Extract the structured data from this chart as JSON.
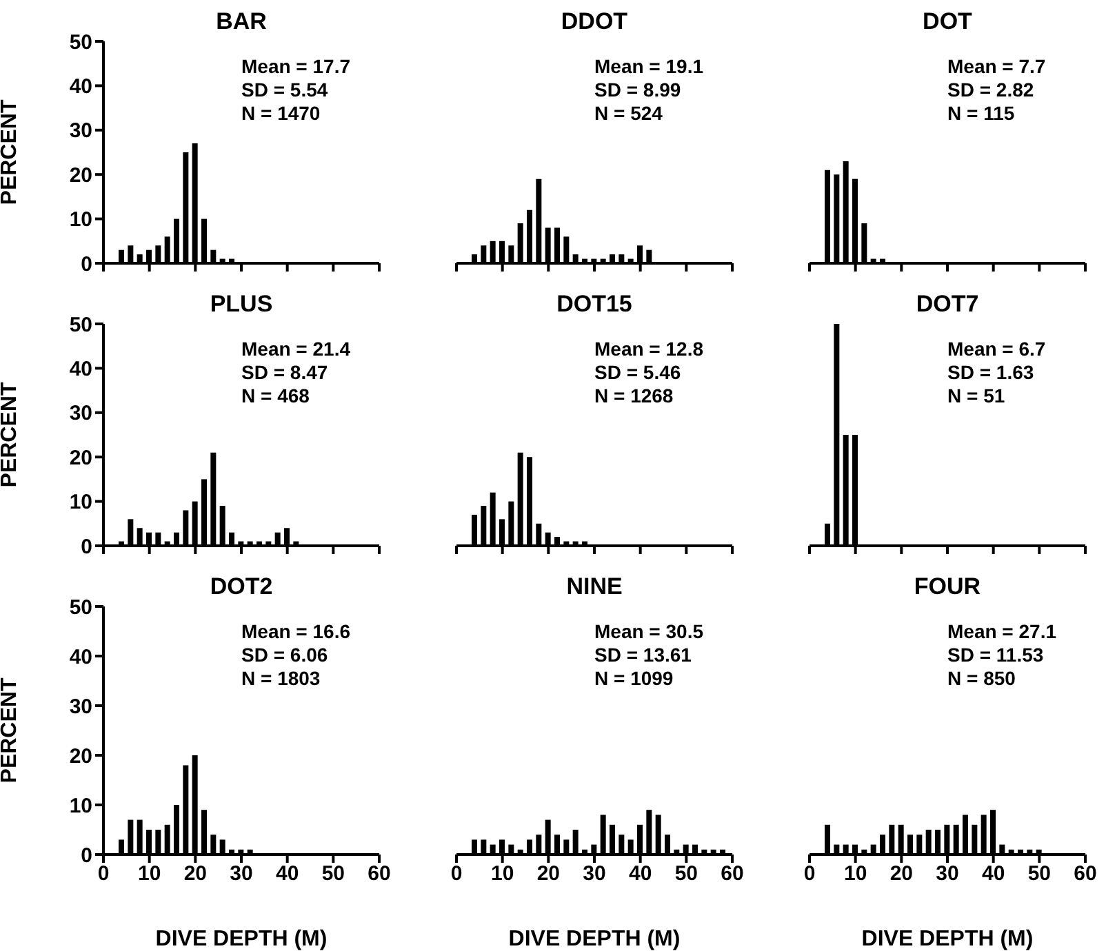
{
  "chart_data": [
    {
      "type": "histogram",
      "title": "BAR",
      "ylabel": "PERCENT",
      "bins": [
        3,
        5,
        7,
        9,
        11,
        13,
        15,
        17,
        19,
        21,
        23,
        25,
        27,
        29
      ],
      "values": [
        3,
        4,
        2,
        3,
        4,
        6,
        10,
        25,
        27,
        10,
        3,
        1,
        1
      ],
      "color": "#000000",
      "xlim": [
        0,
        60
      ],
      "xticks": [
        0,
        10,
        20,
        30,
        40,
        50,
        60
      ],
      "ylim": [
        0,
        50
      ],
      "yticks": [
        0,
        10,
        20,
        30,
        40,
        50
      ],
      "tick_labels": "y",
      "annotations": [
        "Mean = 17.7",
        "SD = 5.54",
        "N = 1470"
      ]
    },
    {
      "type": "histogram",
      "title": "DDOT",
      "bins": [
        3,
        5,
        7,
        9,
        11,
        13,
        15,
        17,
        19,
        21,
        23,
        25,
        27,
        29,
        31,
        33,
        35,
        37,
        39,
        41,
        43
      ],
      "values": [
        2,
        4,
        5,
        5,
        4,
        9,
        12,
        19,
        8,
        8,
        6,
        2,
        1,
        1,
        1,
        2,
        2,
        1,
        4,
        3
      ],
      "color": "#000000",
      "xlim": [
        0,
        60
      ],
      "xticks": [
        0,
        10,
        20,
        30,
        40,
        50,
        60
      ],
      "ylim": [
        0,
        50
      ],
      "yticks": [
        0,
        10,
        20,
        30,
        40,
        50
      ],
      "tick_labels": false,
      "annotations": [
        "Mean = 19.1",
        "SD = 8.99",
        "N = 524"
      ]
    },
    {
      "type": "histogram",
      "title": "DOT",
      "bins": [
        3,
        5,
        7,
        9,
        11,
        13,
        15,
        17
      ],
      "values": [
        21,
        20,
        23,
        19,
        9,
        1,
        1
      ],
      "color": "#000000",
      "xlim": [
        0,
        60
      ],
      "xticks": [
        0,
        10,
        20,
        30,
        40,
        50,
        60
      ],
      "ylim": [
        0,
        50
      ],
      "yticks": [
        0,
        10,
        20,
        30,
        40,
        50
      ],
      "tick_labels": false,
      "annotations": [
        "Mean = 7.7",
        "SD = 2.82",
        "N = 115"
      ]
    },
    {
      "type": "histogram",
      "title": "PLUS",
      "ylabel": "PERCENT",
      "bins": [
        3,
        5,
        7,
        9,
        11,
        13,
        15,
        17,
        19,
        21,
        23,
        25,
        27,
        29,
        31,
        33,
        35,
        37,
        39,
        41,
        43
      ],
      "values": [
        1,
        6,
        4,
        3,
        3,
        1,
        3,
        8,
        10,
        15,
        21,
        9,
        3,
        1,
        1,
        1,
        1,
        3,
        4,
        1
      ],
      "color": "#000000",
      "xlim": [
        0,
        60
      ],
      "xticks": [
        0,
        10,
        20,
        30,
        40,
        50,
        60
      ],
      "ylim": [
        0,
        50
      ],
      "yticks": [
        0,
        10,
        20,
        30,
        40,
        50
      ],
      "tick_labels": "y",
      "annotations": [
        "Mean = 21.4",
        "SD = 8.47",
        "N = 468"
      ]
    },
    {
      "type": "histogram",
      "title": "DOT15",
      "bins": [
        3,
        5,
        7,
        9,
        11,
        13,
        15,
        17,
        19,
        21,
        23,
        25,
        27,
        29
      ],
      "values": [
        7,
        9,
        12,
        6,
        10,
        21,
        20,
        5,
        3,
        2,
        1,
        1,
        1
      ],
      "color": "#000000",
      "xlim": [
        0,
        60
      ],
      "xticks": [
        0,
        10,
        20,
        30,
        40,
        50,
        60
      ],
      "ylim": [
        0,
        50
      ],
      "yticks": [
        0,
        10,
        20,
        30,
        40,
        50
      ],
      "tick_labels": false,
      "annotations": [
        "Mean = 12.8",
        "SD = 5.46",
        "N = 1268"
      ]
    },
    {
      "type": "histogram",
      "title": "DOT7",
      "bins": [
        3,
        5,
        7,
        9,
        11
      ],
      "values": [
        5,
        50,
        25,
        25
      ],
      "color": "#000000",
      "xlim": [
        0,
        60
      ],
      "xticks": [
        0,
        10,
        20,
        30,
        40,
        50,
        60
      ],
      "ylim": [
        0,
        50
      ],
      "yticks": [
        0,
        10,
        20,
        30,
        40,
        50
      ],
      "tick_labels": false,
      "annotations": [
        "Mean = 6.7",
        "SD = 1.63",
        "N = 51"
      ]
    },
    {
      "type": "histogram",
      "title": "DOT2",
      "ylabel": "PERCENT",
      "xlabel": "DIVE DEPTH (M)",
      "bins": [
        3,
        5,
        7,
        9,
        11,
        13,
        15,
        17,
        19,
        21,
        23,
        25,
        27,
        29,
        31,
        33
      ],
      "values": [
        3,
        7,
        7,
        5,
        5,
        6,
        10,
        18,
        20,
        9,
        4,
        3,
        1,
        1,
        1
      ],
      "color": "#000000",
      "xlim": [
        0,
        60
      ],
      "xticks": [
        0,
        10,
        20,
        30,
        40,
        50,
        60
      ],
      "ylim": [
        0,
        50
      ],
      "yticks": [
        0,
        10,
        20,
        30,
        40,
        50
      ],
      "annotations": [
        "Mean = 16.6",
        "SD = 6.06",
        "N = 1803"
      ]
    },
    {
      "type": "histogram",
      "title": "NINE",
      "xlabel": "DIVE DEPTH (M)",
      "bins": [
        3,
        5,
        7,
        9,
        11,
        13,
        15,
        17,
        19,
        21,
        23,
        25,
        27,
        29,
        31,
        33,
        35,
        37,
        39,
        41,
        43,
        45,
        47,
        49,
        51,
        53,
        55,
        57,
        59
      ],
      "values": [
        3,
        3,
        2,
        3,
        2,
        1,
        3,
        4,
        7,
        4,
        3,
        5,
        1,
        2,
        8,
        6,
        4,
        3,
        6,
        9,
        8,
        4,
        1,
        2,
        2,
        1,
        1,
        1
      ],
      "color": "#000000",
      "xlim": [
        0,
        60
      ],
      "xticks": [
        0,
        10,
        20,
        30,
        40,
        50,
        60
      ],
      "ylim": [
        0,
        50
      ],
      "yticks": [
        0,
        10,
        20,
        30,
        40,
        50
      ],
      "tick_labels": "x",
      "annotations": [
        "Mean = 30.5",
        "SD = 13.61",
        "N = 1099"
      ]
    },
    {
      "type": "histogram",
      "title": "FOUR",
      "xlabel": "DIVE DEPTH (M)",
      "bins": [
        3,
        5,
        7,
        9,
        11,
        13,
        15,
        17,
        19,
        21,
        23,
        25,
        27,
        29,
        31,
        33,
        35,
        37,
        39,
        41,
        43,
        45,
        47,
        49,
        51
      ],
      "values": [
        6,
        2,
        2,
        2,
        1,
        2,
        4,
        6,
        6,
        4,
        4,
        5,
        5,
        6,
        6,
        8,
        6,
        8,
        9,
        2,
        1,
        1,
        1,
        1
      ],
      "color": "#000000",
      "xlim": [
        0,
        60
      ],
      "xticks": [
        0,
        10,
        20,
        30,
        40,
        50,
        60
      ],
      "ylim": [
        0,
        50
      ],
      "yticks": [
        0,
        10,
        20,
        30,
        40,
        50
      ],
      "tick_labels": "x",
      "annotations": [
        "Mean = 27.1",
        "SD = 11.53",
        "N = 850"
      ]
    }
  ]
}
